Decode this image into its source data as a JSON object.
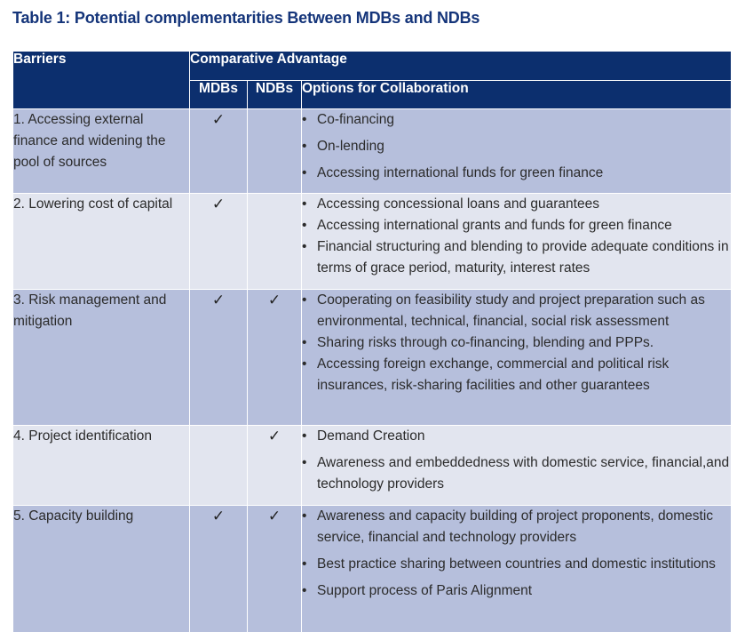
{
  "title": "Table 1: Potential complementarities Between MDBs and NDBs",
  "header": {
    "barriers": "Barriers",
    "comparative_advantage": "Comparative Advantage",
    "mdbs": "MDBs",
    "ndbs": "NDBs",
    "options": "Options for Collaboration"
  },
  "check_mark": "✓",
  "rows": [
    {
      "barrier": "1.  Accessing external finance and widening the pool of sources",
      "mdb": "✓",
      "ndb": "",
      "options": [
        "Co-financing",
        "On-lending",
        "Accessing international funds for green finance"
      ]
    },
    {
      "barrier": "2.  Lowering cost of capital",
      "mdb": "✓",
      "ndb": "",
      "options": [
        "Accessing concessional loans and guarantees",
        "Accessing international grants and funds for green finance",
        "Financial structuring and blending to provide adequate conditions in terms of grace period, maturity, interest rates"
      ]
    },
    {
      "barrier": "3.  Risk management and mitigation",
      "mdb": "✓",
      "ndb": "✓",
      "options": [
        "Cooperating on feasibility study and project preparation such as environmental, technical, financial, social risk assessment",
        "Sharing risks through co-financing, blending and PPPs.",
        "Accessing foreign exchange, commercial and political risk insurances, risk-sharing facilities and other guarantees"
      ]
    },
    {
      "barrier": "4.  Project identification",
      "mdb": "",
      "ndb": "✓",
      "options": [
        "Demand Creation",
        "Awareness and embeddedness with domestic service, financial,and technology providers"
      ]
    },
    {
      "barrier": "5.  Capacity building",
      "mdb": "✓",
      "ndb": "✓",
      "options": [
        "Awareness and capacity building of project proponents, domestic service, financial and technology providers",
        "Best practice sharing between countries and domestic institutions",
        "Support process of Paris Alignment"
      ]
    }
  ]
}
